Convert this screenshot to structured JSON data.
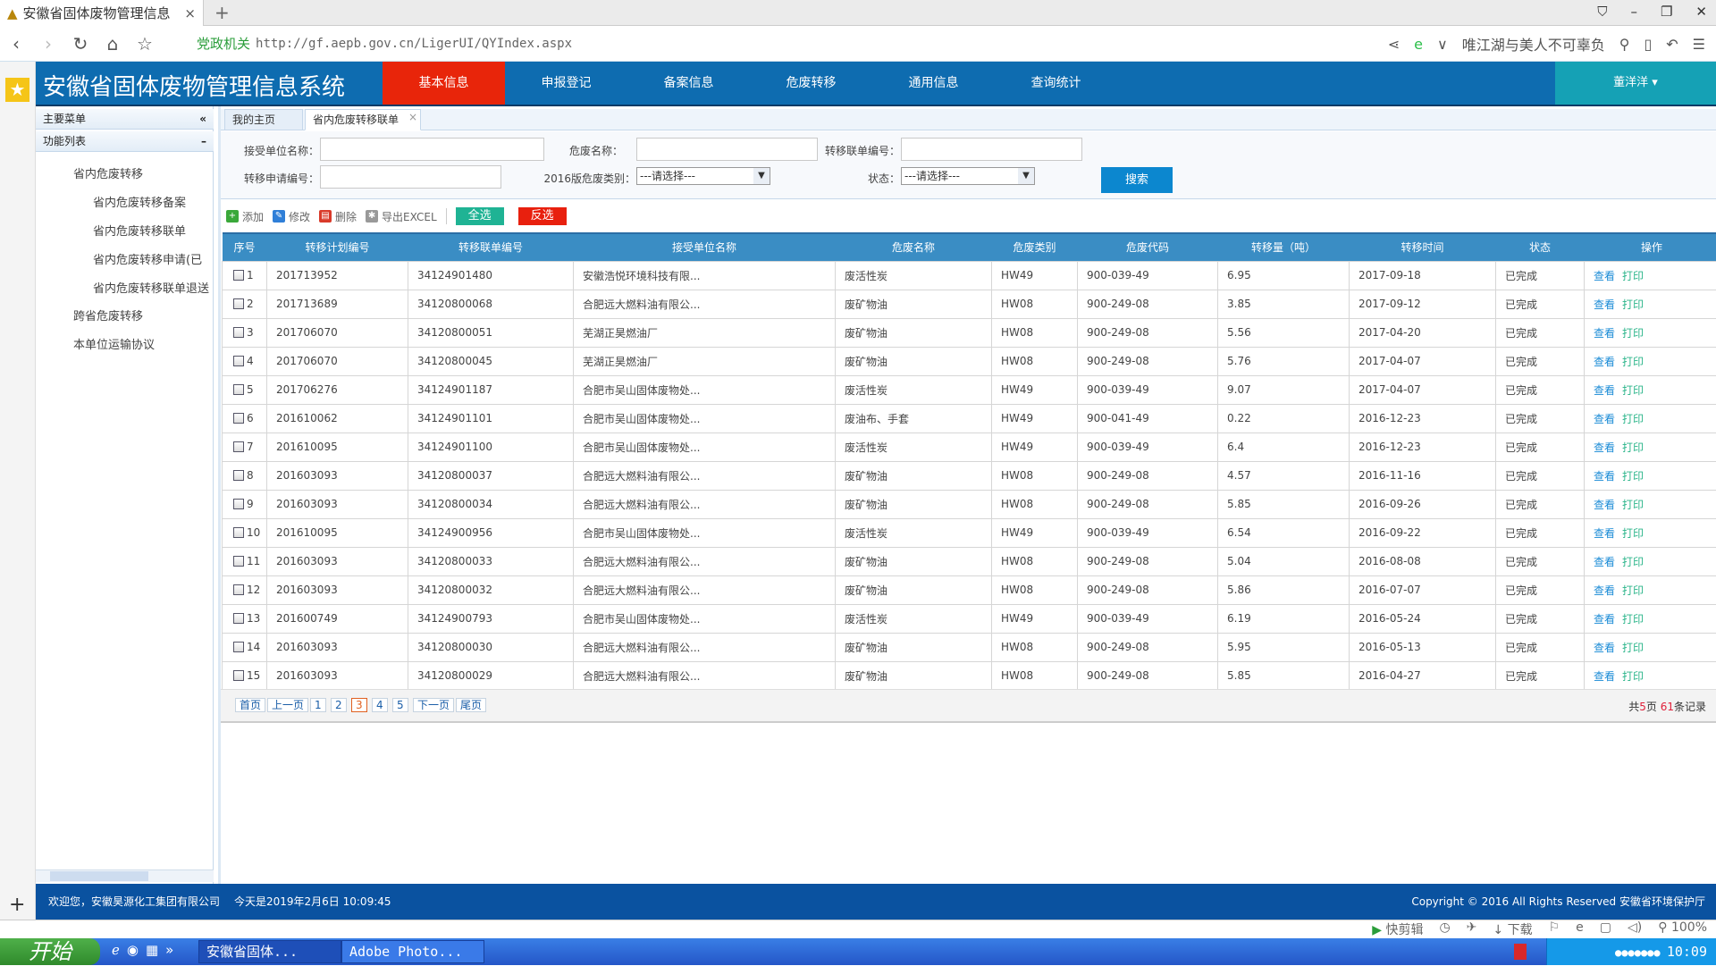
{
  "browser": {
    "tab_title": "安徽省固体废物管理信息",
    "url_badge": "党政机关",
    "url": "http://gf.aepb.gov.cn/LigerUI/QYIndex.aspx",
    "search_hint": "唯江湖与美人不可辜负"
  },
  "app": {
    "title": "安徽省固体废物管理信息系统",
    "nav": [
      "基本信息",
      "申报登记",
      "备案信息",
      "危废转移",
      "通用信息",
      "查询统计"
    ],
    "active_nav": "基本信息",
    "user": "董洋洋 ▾",
    "colors": {
      "header": "#0e6cb0",
      "active": "#e8250a",
      "user": "#15a1b5"
    }
  },
  "sidebar": {
    "header": "主要菜单",
    "section": "功能列表",
    "items": [
      "省内危废转移",
      "省内危废转移备案",
      "省内危废转移联单",
      "省内危废转移申请(已",
      "省内危废转移联单退送",
      "跨省危废转移",
      "本单位运输协议"
    ]
  },
  "tabs": [
    "我的主页",
    "省内危废转移联单"
  ],
  "form": {
    "receiver_label": "接受单位名称：",
    "waste_name_label": "危废名称：",
    "manifest_label": "转移联单编号：",
    "apply_label": "转移申请编号：",
    "category_label": "2016版危废类别：",
    "category_value": "---请选择---",
    "status_label": "状态：",
    "status_value": "---请选择---",
    "search": "搜索"
  },
  "toolbar": {
    "add": "添加",
    "edit": "修改",
    "delete": "删除",
    "export": "导出EXCEL",
    "select_all": "全选",
    "invert": "反选"
  },
  "table": {
    "headers": [
      "序号",
      "转移计划编号",
      "转移联单编号",
      "接受单位名称",
      "危废名称",
      "危废类别",
      "危废代码",
      "转移量（吨）",
      "转移时间",
      "状态",
      "操作"
    ],
    "view": "查看",
    "print": "打印",
    "rows": [
      [
        "1",
        "201713952",
        "34124901480",
        "安徽浩悦环境科技有限...",
        "废活性炭",
        "HW49",
        "900-039-49",
        "6.95",
        "2017-09-18",
        "已完成"
      ],
      [
        "2",
        "201713689",
        "34120800068",
        "合肥远大燃料油有限公...",
        "废矿物油",
        "HW08",
        "900-249-08",
        "3.85",
        "2017-09-12",
        "已完成"
      ],
      [
        "3",
        "201706070",
        "34120800051",
        "芜湖正昊燃油厂",
        "废矿物油",
        "HW08",
        "900-249-08",
        "5.56",
        "2017-04-20",
        "已完成"
      ],
      [
        "4",
        "201706070",
        "34120800045",
        "芜湖正昊燃油厂",
        "废矿物油",
        "HW08",
        "900-249-08",
        "5.76",
        "2017-04-07",
        "已完成"
      ],
      [
        "5",
        "201706276",
        "34124901187",
        "合肥市吴山固体废物处...",
        "废活性炭",
        "HW49",
        "900-039-49",
        "9.07",
        "2017-04-07",
        "已完成"
      ],
      [
        "6",
        "201610062",
        "34124901101",
        "合肥市吴山固体废物处...",
        "废油布、手套",
        "HW49",
        "900-041-49",
        "0.22",
        "2016-12-23",
        "已完成"
      ],
      [
        "7",
        "201610095",
        "34124901100",
        "合肥市吴山固体废物处...",
        "废活性炭",
        "HW49",
        "900-039-49",
        "6.4",
        "2016-12-23",
        "已完成"
      ],
      [
        "8",
        "201603093",
        "34120800037",
        "合肥远大燃料油有限公...",
        "废矿物油",
        "HW08",
        "900-249-08",
        "4.57",
        "2016-11-16",
        "已完成"
      ],
      [
        "9",
        "201603093",
        "34120800034",
        "合肥远大燃料油有限公...",
        "废矿物油",
        "HW08",
        "900-249-08",
        "5.85",
        "2016-09-26",
        "已完成"
      ],
      [
        "10",
        "201610095",
        "34124900956",
        "合肥市吴山固体废物处...",
        "废活性炭",
        "HW49",
        "900-039-49",
        "6.54",
        "2016-09-22",
        "已完成"
      ],
      [
        "11",
        "201603093",
        "34120800033",
        "合肥远大燃料油有限公...",
        "废矿物油",
        "HW08",
        "900-249-08",
        "5.04",
        "2016-08-08",
        "已完成"
      ],
      [
        "12",
        "201603093",
        "34120800032",
        "合肥远大燃料油有限公...",
        "废矿物油",
        "HW08",
        "900-249-08",
        "5.86",
        "2016-07-07",
        "已完成"
      ],
      [
        "13",
        "201600749",
        "34124900793",
        "合肥市吴山固体废物处...",
        "废活性炭",
        "HW49",
        "900-039-49",
        "6.19",
        "2016-05-24",
        "已完成"
      ],
      [
        "14",
        "201603093",
        "34120800030",
        "合肥远大燃料油有限公...",
        "废矿物油",
        "HW08",
        "900-249-08",
        "5.95",
        "2016-05-13",
        "已完成"
      ],
      [
        "15",
        "201603093",
        "34120800029",
        "合肥远大燃料油有限公...",
        "废矿物油",
        "HW08",
        "900-249-08",
        "5.85",
        "2016-04-27",
        "已完成"
      ]
    ]
  },
  "pager": {
    "first": "首页",
    "prev": "上一页",
    "pages": [
      "1",
      "2",
      "3",
      "4",
      "5"
    ],
    "current": "3",
    "next": "下一页",
    "last": "尾页",
    "info_pre": "共",
    "total_pages": "5",
    "info_mid": "页 ",
    "total_records": "61",
    "info_post": "条记录"
  },
  "footer": {
    "welcome": "欢迎您，安徽昊源化工集团有限公司",
    "date": "今天是2019年2月6日  10:09:45",
    "copyright": "Copyright © 2016 All Rights Reserved 安徽省环境保护厅"
  },
  "statusbar": {
    "clip": "快剪辑",
    "download": "下载",
    "zoom": "100%"
  },
  "taskbar": {
    "start": "开始",
    "tasks": [
      "安徽省固体...",
      "Adobe Photo..."
    ],
    "clock": "10:09"
  }
}
